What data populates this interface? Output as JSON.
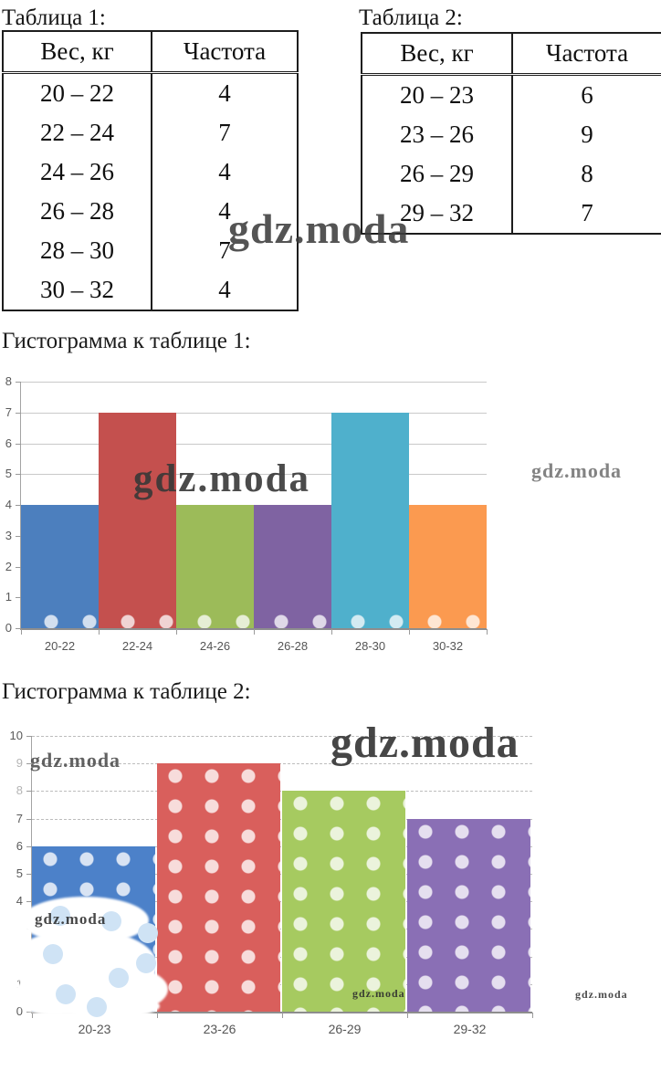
{
  "watermark": {
    "text": "gdz.moda"
  },
  "tables": [
    {
      "title": "Таблица 1:",
      "headers": [
        "Вес, кг",
        "Частота"
      ],
      "rows": [
        [
          "20 – 22",
          "4"
        ],
        [
          "22 – 24",
          "7"
        ],
        [
          "24 – 26",
          "4"
        ],
        [
          "26 – 28",
          "4"
        ],
        [
          "28 – 30",
          "7"
        ],
        [
          "30 – 32",
          "4"
        ]
      ]
    },
    {
      "title": "Таблица 2:",
      "headers": [
        "Вес, кг",
        "Частота"
      ],
      "rows": [
        [
          "20 – 23",
          "6"
        ],
        [
          "23 – 26",
          "9"
        ],
        [
          "26 – 29",
          "8"
        ],
        [
          "29 – 32",
          "7"
        ]
      ]
    }
  ],
  "sections": [
    {
      "heading": "Гистограмма к таблице 1:"
    },
    {
      "heading": "Гистограмма к таблице 2:"
    }
  ],
  "chart_data": [
    {
      "type": "bar",
      "title": "Гистограмма к таблице 1:",
      "categories": [
        "20-22",
        "22-24",
        "24-26",
        "26-28",
        "28-30",
        "30-32"
      ],
      "values": [
        4,
        7,
        4,
        4,
        7,
        4
      ],
      "xlabel": "",
      "ylabel": "",
      "ylim": [
        0,
        8
      ],
      "yticks": [
        "0",
        "1",
        "2",
        "3",
        "4",
        "5",
        "6",
        "7",
        "8"
      ],
      "grid": "solid horizontal gridlines",
      "legend": "none",
      "bar_colors": [
        "#4C7FBE",
        "#C4504E",
        "#9CBB59",
        "#7F63A2",
        "#4FB0CC",
        "#FB9A50"
      ]
    },
    {
      "type": "bar",
      "title": "Гистограмма к таблице 2:",
      "categories": [
        "20-23",
        "23-26",
        "26-29",
        "29-32"
      ],
      "values": [
        6,
        9,
        8,
        7
      ],
      "xlabel": "",
      "ylabel": "",
      "ylim": [
        0,
        10
      ],
      "yticks": [
        "0",
        "1",
        "2",
        "3",
        "4",
        "5",
        "6",
        "7",
        "8",
        "9",
        "10"
      ],
      "grid": "dashed horizontal gridlines",
      "legend": "none",
      "fill_pattern": "white polka dots",
      "bar_colors": [
        "#4C81C9",
        "#D95F5C",
        "#A6CA60",
        "#8A6FB5"
      ]
    }
  ]
}
